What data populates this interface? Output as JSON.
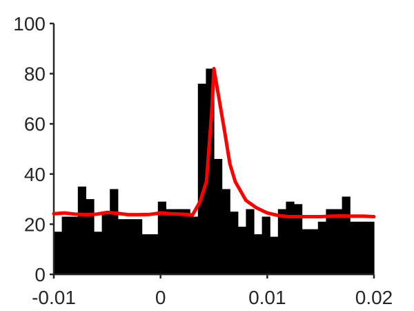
{
  "chart_data": {
    "type": "bar",
    "title": "",
    "xlabel": "",
    "ylabel": "",
    "xlim": [
      -0.01,
      0.02
    ],
    "ylim": [
      0,
      100
    ],
    "x_ticks": [
      {
        "value": -0.01,
        "label": "-0.01"
      },
      {
        "value": 0,
        "label": "0"
      },
      {
        "value": 0.01,
        "label": "0.01"
      },
      {
        "value": 0.02,
        "label": "0.02"
      }
    ],
    "y_ticks": [
      {
        "value": 0,
        "label": "0"
      },
      {
        "value": 20,
        "label": "20"
      },
      {
        "value": 40,
        "label": "40"
      },
      {
        "value": 60,
        "label": "60"
      },
      {
        "value": 80,
        "label": "80"
      },
      {
        "value": 100,
        "label": "100"
      }
    ],
    "grid": false,
    "bar_color": "#000000",
    "line_color": "#ff0000",
    "histogram": {
      "bin_start": -0.01,
      "bin_width": 0.00075,
      "counts": [
        17,
        23,
        23,
        35,
        30,
        17,
        24,
        34,
        22,
        22,
        22,
        16,
        16,
        29,
        26,
        26,
        26,
        23,
        76,
        82,
        46,
        34,
        25,
        19,
        26,
        16,
        23,
        15,
        26,
        29,
        28,
        18,
        18,
        21,
        26,
        26,
        31,
        21,
        21,
        21
      ]
    },
    "series": [
      {
        "type": "line",
        "x": [
          -0.01,
          -0.009,
          -0.008,
          -0.007,
          -0.006,
          -0.005,
          -0.004,
          -0.003,
          -0.002,
          -0.001,
          0,
          0.001,
          0.002,
          0.003,
          0.0037,
          0.0043,
          0.0048,
          0.005,
          0.0054,
          0.006,
          0.0065,
          0.007,
          0.008,
          0.009,
          0.01,
          0.011,
          0.012,
          0.013,
          0.014,
          0.015,
          0.016,
          0.017,
          0.018,
          0.019,
          0.02
        ],
        "y": [
          24.2,
          24.5,
          24.0,
          23.8,
          24.0,
          24.7,
          24.3,
          23.8,
          23.8,
          23.9,
          24.5,
          24.2,
          24.0,
          23.7,
          29.0,
          37.0,
          65.0,
          82.0,
          72.0,
          57.0,
          44.0,
          37.0,
          29.5,
          26.5,
          24.5,
          23.5,
          23.0,
          23.0,
          23.0,
          23.0,
          23.2,
          23.3,
          23.2,
          23.2,
          23.0
        ]
      }
    ]
  }
}
